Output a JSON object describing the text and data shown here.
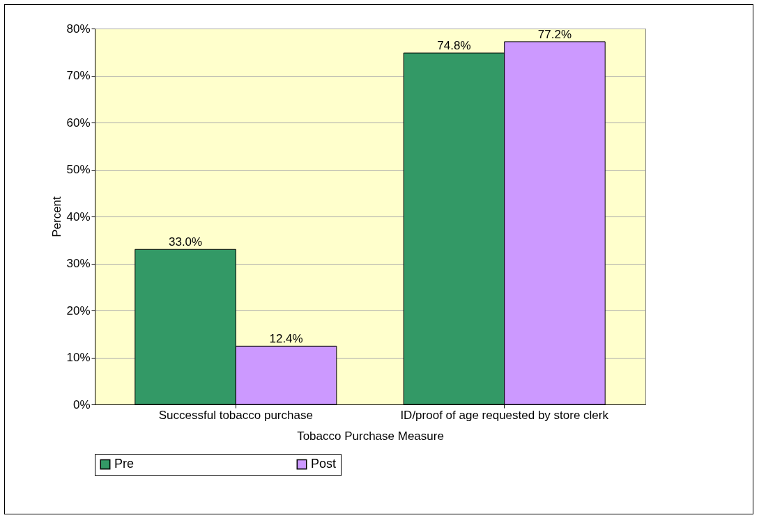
{
  "chart_data": {
    "type": "bar",
    "xlabel": "Tobacco Purchase Measure",
    "ylabel": "Percent",
    "categories": [
      "Successful tobacco purchase",
      "ID/proof of age requested by store clerk"
    ],
    "series": [
      {
        "name": "Pre",
        "color": "#339966",
        "values": [
          33.0,
          74.8
        ],
        "value_labels": [
          "33.0%",
          "74.8%"
        ]
      },
      {
        "name": "Post",
        "color": "#cc99ff",
        "values": [
          12.4,
          77.2
        ],
        "value_labels": [
          "12.4%",
          "77.2%"
        ]
      }
    ],
    "ylim": [
      0,
      80
    ],
    "yticks": [
      {
        "value": 0,
        "label": "0%"
      },
      {
        "value": 10,
        "label": "10%"
      },
      {
        "value": 20,
        "label": "20%"
      },
      {
        "value": 30,
        "label": "30%"
      },
      {
        "value": 40,
        "label": "40%"
      },
      {
        "value": 50,
        "label": "50%"
      },
      {
        "value": 60,
        "label": "60%"
      },
      {
        "value": 70,
        "label": "70%"
      },
      {
        "value": 80,
        "label": "80%"
      }
    ],
    "grid": "y",
    "legend": "bottom"
  }
}
